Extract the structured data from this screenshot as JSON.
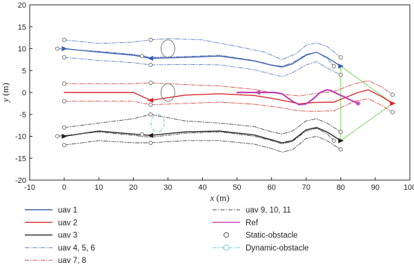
{
  "chart_data": {
    "type": "line",
    "title": "",
    "xlabel_var": "x",
    "xlabel_unit": " (m)",
    "ylabel_var": "y",
    "ylabel_unit": " (m)",
    "xlim": [
      -10,
      100
    ],
    "ylim": [
      -20,
      20
    ],
    "xticks": [
      -10,
      0,
      10,
      20,
      30,
      40,
      50,
      60,
      70,
      80,
      90,
      100
    ],
    "yticks": [
      -20,
      -15,
      -10,
      -5,
      0,
      5,
      10,
      15,
      20
    ],
    "grid": false,
    "legend_placement": "below-plot",
    "colors": {
      "uav1": "#3a5fa8",
      "uav2": "#d8252b",
      "uav3": "#222222",
      "uav456": "#5a78c0",
      "uav78": "#d84040",
      "uav91011": "#444444",
      "ref": "#c040b0",
      "formation": "#66cc44",
      "static_obstacle": "#777777",
      "dynamic_obstacle": "#66cccc"
    },
    "series": [
      {
        "name": "uav 1",
        "key": "uav1",
        "style": "solid",
        "color": "#3a5fa8",
        "x": [
          0,
          10,
          20,
          25,
          35,
          45,
          55,
          60,
          63,
          66,
          70,
          73,
          76,
          80
        ],
        "y": [
          10,
          9.2,
          8.5,
          7.8,
          8,
          8.3,
          7.2,
          6.2,
          5.8,
          6.5,
          8.5,
          9.2,
          8,
          6
        ]
      },
      {
        "name": "uav 2",
        "key": "uav2",
        "style": "solid",
        "color": "#d8252b",
        "x": [
          0,
          20,
          25,
          35,
          45,
          55,
          62,
          68,
          72,
          78,
          85,
          88,
          92,
          95
        ],
        "y": [
          0,
          0,
          -1.8,
          -0.6,
          -0.3,
          -0.7,
          -1.6,
          -2.6,
          -2.3,
          -2.2,
          0,
          0.6,
          -1,
          -2.5
        ]
      },
      {
        "name": "uav 3",
        "key": "uav3",
        "style": "solid",
        "color": "#222222",
        "x": [
          0,
          10,
          20,
          25,
          35,
          45,
          55,
          60,
          63,
          66,
          70,
          73,
          76,
          80
        ],
        "y": [
          -10,
          -8.8,
          -9.5,
          -9.8,
          -9,
          -8.8,
          -9.7,
          -10.8,
          -11.5,
          -11,
          -8.5,
          -8,
          -9,
          -11
        ]
      },
      {
        "name": "uav 4, 5, 6",
        "key": "uav456",
        "style": "dashdot",
        "color": "#5a78c0",
        "sub": [
          {
            "x": [
              0,
              10,
              20,
              25,
              30,
              40,
              50,
              58,
              63,
              67,
              70,
              73,
              76,
              80
            ],
            "y": [
              12,
              11.2,
              11.5,
              12,
              12.3,
              12,
              10.5,
              9.2,
              7.5,
              8.8,
              10.8,
              11.3,
              10.5,
              8
            ]
          },
          {
            "x": [
              -2,
              10,
              20,
              25,
              35,
              45,
              55,
              60,
              63,
              66,
              70,
              73,
              76,
              78
            ],
            "y": [
              10,
              9.4,
              8.7,
              8,
              8.2,
              8.5,
              7.3,
              6.3,
              6,
              6.8,
              8.7,
              9.2,
              7.8,
              6
            ]
          },
          {
            "x": [
              0,
              10,
              20,
              25,
              35,
              45,
              55,
              60,
              63,
              66,
              70,
              73,
              76,
              80
            ],
            "y": [
              8,
              7.3,
              6.8,
              6.3,
              6.4,
              6.3,
              5.2,
              4.2,
              3.6,
              4.5,
              6.3,
              7,
              5.6,
              4
            ]
          }
        ]
      },
      {
        "name": "uav 7, 8",
        "key": "uav78",
        "style": "dashdot",
        "color": "#d84040",
        "sub": [
          {
            "x": [
              0,
              20,
              25,
              35,
              45,
              55,
              62,
              68,
              72,
              78,
              84,
              88,
              92,
              95
            ],
            "y": [
              2,
              2,
              2.2,
              1.8,
              1.5,
              0.7,
              -0.3,
              -0.8,
              -0.3,
              0.2,
              2,
              2.7,
              1.2,
              -0.5
            ]
          },
          {
            "x": [
              0,
              20,
              25,
              35,
              45,
              55,
              62,
              68,
              72,
              78,
              84,
              88,
              92,
              95
            ],
            "y": [
              -2,
              -2,
              -2.8,
              -2.5,
              -2.2,
              -2.7,
              -3.4,
              -4.2,
              -4.3,
              -4.2,
              -2,
              -1.4,
              -3,
              -4.5
            ]
          }
        ]
      },
      {
        "name": "uav 9, 10, 11",
        "key": "uav91011",
        "style": "dashdot",
        "color": "#444444",
        "sub": [
          {
            "x": [
              0,
              10,
              20,
              25,
              35,
              45,
              55,
              60,
              63,
              66,
              70,
              73,
              76,
              80
            ],
            "y": [
              -8,
              -7,
              -6,
              -5,
              -6.5,
              -7,
              -7.8,
              -9,
              -9.5,
              -8.8,
              -6.5,
              -6,
              -7,
              -9
            ]
          },
          {
            "x": [
              -2,
              10,
              20,
              25,
              35,
              45,
              55,
              60,
              63,
              66,
              70,
              73,
              76,
              78
            ],
            "y": [
              -10,
              -9,
              -9.8,
              -10.2,
              -9.3,
              -9,
              -10,
              -11,
              -11.7,
              -11.2,
              -8.8,
              -8.2,
              -9.4,
              -11
            ]
          },
          {
            "x": [
              0,
              10,
              20,
              25,
              35,
              45,
              55,
              60,
              63,
              66,
              70,
              73,
              76,
              80
            ],
            "y": [
              -12,
              -11,
              -11.5,
              -11.5,
              -11,
              -11,
              -11.8,
              -12.8,
              -13.6,
              -13.1,
              -10.5,
              -10,
              -11,
              -13
            ]
          }
        ]
      },
      {
        "name": "Ref",
        "key": "ref",
        "style": "solid",
        "color": "#c040b0",
        "x": [
          50,
          53,
          56,
          58,
          61,
          63,
          66,
          68,
          70,
          72,
          74,
          76,
          77,
          79,
          81,
          83,
          85
        ],
        "y": [
          0,
          0,
          0,
          0,
          0,
          -0.3,
          -2,
          -2.8,
          -2.6,
          -1.5,
          0,
          0.6,
          0.5,
          -0.3,
          -1,
          -1.8,
          -2.5
        ]
      }
    ],
    "legend": [
      {
        "label": "uav 1",
        "key": "uav1",
        "kind": "solid"
      },
      {
        "label": "uav 2",
        "key": "uav2",
        "kind": "solid"
      },
      {
        "label": "uav 3",
        "key": "uav3",
        "kind": "solid"
      },
      {
        "label": "uav 4, 5, 6",
        "key": "uav456",
        "kind": "dashdot"
      },
      {
        "label": "uav 7, 8",
        "key": "uav78",
        "kind": "dashdot"
      },
      {
        "label": "uav 9, 10, 11",
        "key": "uav91011",
        "kind": "dashdot"
      },
      {
        "label": "Ref",
        "key": "ref",
        "kind": "solid"
      },
      {
        "label": "Static-obstacle",
        "key": "static_obstacle",
        "kind": "circle"
      },
      {
        "label": "Dynamic-obstacle",
        "key": "dynamic_obstacle",
        "kind": "dashcircle"
      }
    ],
    "static_obstacles": [
      {
        "x": 30,
        "y": 10,
        "rx": 2,
        "ry": 2
      },
      {
        "x": 30,
        "y": 0,
        "rx": 2,
        "ry": 2
      }
    ],
    "dynamic_obstacle": {
      "x": 27,
      "y": -7,
      "rx": 1.9,
      "ry": 2
    },
    "formation_links": [
      {
        "x": [
          80,
          95
        ],
        "y": [
          6,
          -2.5
        ]
      },
      {
        "x": [
          95,
          80
        ],
        "y": [
          -2.5,
          -11
        ]
      },
      {
        "x": [
          80,
          80
        ],
        "y": [
          6,
          -11
        ]
      }
    ],
    "circle_markers": [
      {
        "x": 0,
        "y": 12
      },
      {
        "x": -2,
        "y": 10
      },
      {
        "x": 0,
        "y": 8
      },
      {
        "x": 0,
        "y": 2
      },
      {
        "x": 0,
        "y": -2
      },
      {
        "x": 0,
        "y": -8
      },
      {
        "x": -2,
        "y": -10
      },
      {
        "x": 0,
        "y": -12
      },
      {
        "x": 25,
        "y": 12
      },
      {
        "x": 22.5,
        "y": 8.3
      },
      {
        "x": 25,
        "y": 6.3
      },
      {
        "x": 25,
        "y": 2.2
      },
      {
        "x": 25,
        "y": -2.8
      },
      {
        "x": 25,
        "y": -5
      },
      {
        "x": 22.5,
        "y": -9.6
      },
      {
        "x": 25,
        "y": -11.5
      },
      {
        "x": 80,
        "y": 8
      },
      {
        "x": 78,
        "y": 6
      },
      {
        "x": 80,
        "y": 4
      },
      {
        "x": 95,
        "y": -0.5
      },
      {
        "x": 95,
        "y": -4.5
      },
      {
        "x": 80,
        "y": -9
      },
      {
        "x": 78,
        "y": -11
      },
      {
        "x": 80,
        "y": -13
      }
    ],
    "arrow_markers": [
      {
        "x": 0,
        "y": 10,
        "dir": "right",
        "key": "uav1"
      },
      {
        "x": 25,
        "y": 7.8,
        "dir": "left",
        "key": "uav1"
      },
      {
        "x": 80,
        "y": 6,
        "dir": "right",
        "key": "uav1"
      },
      {
        "x": 25,
        "y": -1.8,
        "dir": "left",
        "key": "uav2"
      },
      {
        "x": 95,
        "y": -2.5,
        "dir": "right",
        "key": "uav2"
      },
      {
        "x": 0,
        "y": -10,
        "dir": "right",
        "key": "uav3"
      },
      {
        "x": 25,
        "y": -9.8,
        "dir": "left",
        "key": "uav3"
      },
      {
        "x": 80,
        "y": -11,
        "dir": "right",
        "key": "uav3"
      },
      {
        "x": 56,
        "y": 0,
        "dir": "left",
        "key": "ref"
      }
    ],
    "ref_end_marker": {
      "x": 85,
      "y": -2.5
    }
  }
}
